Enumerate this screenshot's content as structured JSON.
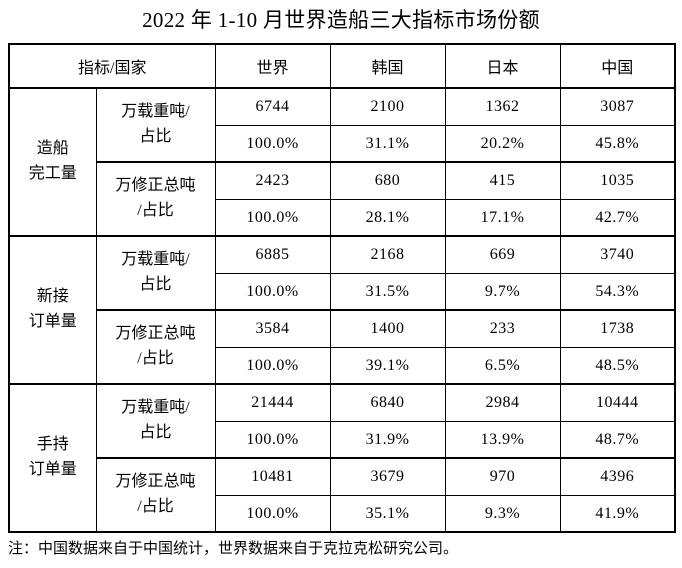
{
  "title": "2022 年 1-10 月世界造船三大指标市场份额",
  "note": "注：中国数据来自于中国统计，世界数据来自于克拉克松研究公司。",
  "table": {
    "corner_header": "指标/国家",
    "country_headers": [
      "世界",
      "韩国",
      "日本",
      "中国"
    ],
    "sections": [
      {
        "group": "造船\n完工量",
        "metrics": [
          {
            "label": "万载重吨/\n占比",
            "values": [
              "6744",
              "2100",
              "1362",
              "3087"
            ],
            "shares": [
              "100.0%",
              "31.1%",
              "20.2%",
              "45.8%"
            ]
          },
          {
            "label": "万修正总吨\n/占比",
            "values": [
              "2423",
              "680",
              "415",
              "1035"
            ],
            "shares": [
              "100.0%",
              "28.1%",
              "17.1%",
              "42.7%"
            ]
          }
        ]
      },
      {
        "group": "新接\n订单量",
        "metrics": [
          {
            "label": "万载重吨/\n占比",
            "values": [
              "6885",
              "2168",
              "669",
              "3740"
            ],
            "shares": [
              "100.0%",
              "31.5%",
              "9.7%",
              "54.3%"
            ]
          },
          {
            "label": "万修正总吨\n/占比",
            "values": [
              "3584",
              "1400",
              "233",
              "1738"
            ],
            "shares": [
              "100.0%",
              "39.1%",
              "6.5%",
              "48.5%"
            ]
          }
        ]
      },
      {
        "group": "手持\n订单量",
        "metrics": [
          {
            "label": "万载重吨/\n占比",
            "values": [
              "21444",
              "6840",
              "2984",
              "10444"
            ],
            "shares": [
              "100.0%",
              "31.9%",
              "13.9%",
              "48.7%"
            ]
          },
          {
            "label": "万修正总吨\n/占比",
            "values": [
              "10481",
              "3679",
              "970",
              "4396"
            ],
            "shares": [
              "100.0%",
              "35.1%",
              "9.3%",
              "41.9%"
            ]
          }
        ]
      }
    ]
  }
}
